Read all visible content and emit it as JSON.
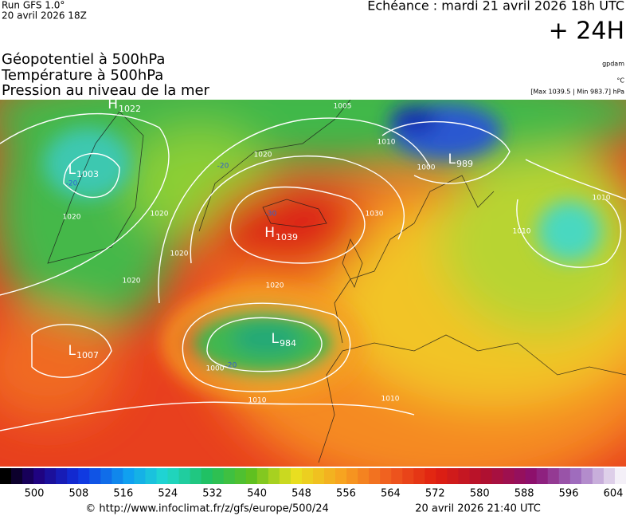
{
  "header": {
    "run": "Run GFS 1.0°",
    "run_date": "20 avril 2026 18Z",
    "echeance": "Echéance : mardi 21 avril 2026 18h UTC",
    "lead": "+ 24H",
    "layers": [
      "Géopotentiel à 500hPa",
      "Température à 500hPa",
      "Pression au niveau de la mer"
    ],
    "units": [
      "gpdam",
      "°C",
      "[Max 1039.5 | Min 983.7] hPa"
    ]
  },
  "map": {
    "pressure_centers": [
      {
        "letter": "H",
        "value": "1022"
      },
      {
        "letter": "L",
        "value": "1003"
      },
      {
        "letter": "L",
        "value": "989"
      },
      {
        "letter": "H",
        "value": "1039"
      },
      {
        "letter": "L",
        "value": "984"
      },
      {
        "letter": "L",
        "value": "1007"
      }
    ],
    "contour_labels": [
      "1005",
      "1020",
      "1020",
      "1020",
      "1030",
      "1020",
      "1020",
      "1010",
      "1000",
      "1010",
      "1010",
      "1020",
      "1010",
      "1010",
      "1000",
      "-20",
      "-20",
      "-30",
      "-20"
    ]
  },
  "colorbar": {
    "labels": [
      "500",
      "508",
      "516",
      "524",
      "532",
      "540",
      "548",
      "556",
      "564",
      "572",
      "580",
      "588",
      "596",
      "604"
    ]
  },
  "footer": {
    "source": "© http://www.infoclimat.fr/z/gfs/europe/500/24",
    "generated": "20 avril 2026 21:40 UTC"
  }
}
